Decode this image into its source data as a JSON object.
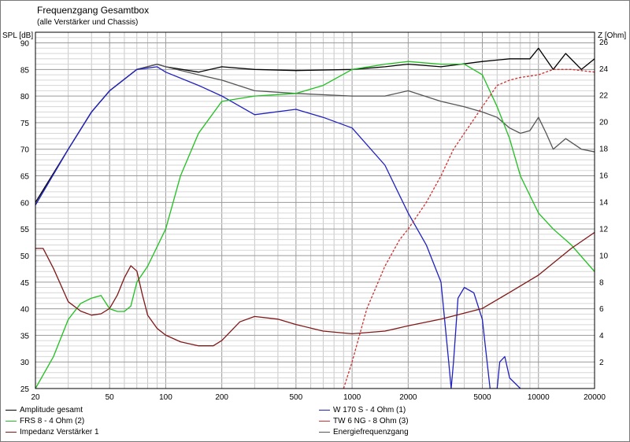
{
  "chart_data": {
    "type": "line",
    "title": "Frequenzgang Gesamtbox",
    "subtitle": "(alle Verstärker und Chassis)",
    "ylabel_left": "SPL [dB]",
    "ylabel_right": "Z [Ohm]",
    "x_scale": "log",
    "xlim": [
      20,
      20000
    ],
    "ylim_left": [
      25,
      92
    ],
    "ylim_right": [
      0,
      26.7
    ],
    "x_ticks": [
      20,
      50,
      100,
      200,
      500,
      1000,
      2000,
      5000,
      10000,
      20000
    ],
    "x_tick_labels": [
      "20",
      "50",
      "100",
      "200",
      "500",
      "1000",
      "2000",
      "5000",
      "10000",
      "20000"
    ],
    "y_ticks_left": [
      25,
      30,
      35,
      40,
      45,
      50,
      55,
      60,
      65,
      70,
      75,
      80,
      85,
      90
    ],
    "y_ticks_right": [
      2,
      4,
      6,
      8,
      10,
      12,
      14,
      16,
      18,
      20,
      22,
      24,
      26
    ],
    "grid": true,
    "series": [
      {
        "name": "Amplitude gesamt",
        "color": "#000000",
        "axis": "left",
        "style": "solid",
        "x": [
          20,
          30,
          40,
          50,
          70,
          90,
          100,
          150,
          200,
          300,
          500,
          1000,
          1500,
          2000,
          3000,
          5000,
          7000,
          9000,
          10000,
          12000,
          14000,
          17000,
          20000
        ],
        "y": [
          60,
          70,
          77,
          81,
          85,
          86,
          85.5,
          84.5,
          85.5,
          85,
          84.8,
          85,
          85.5,
          86,
          85.5,
          86.5,
          87,
          87,
          89,
          85,
          88,
          85,
          87
        ]
      },
      {
        "name": "Energiefrequenzgang",
        "color": "#555555",
        "axis": "left",
        "style": "solid",
        "x": [
          20,
          30,
          40,
          50,
          70,
          90,
          100,
          150,
          200,
          300,
          500,
          1000,
          1500,
          2000,
          3000,
          4000,
          5000,
          6000,
          7000,
          8000,
          9000,
          10000,
          11000,
          12000,
          14000,
          17000,
          20000
        ],
        "y": [
          59.5,
          70,
          77,
          81,
          85,
          86,
          85.5,
          84,
          83,
          81,
          80.5,
          80,
          80,
          81,
          79,
          78,
          77,
          76,
          74,
          73,
          73.5,
          76,
          73,
          70,
          72,
          70,
          69.5
        ]
      },
      {
        "name": "W 170 S - 4 Ohm (1)",
        "color": "#2020c0",
        "axis": "left",
        "style": "solid",
        "x": [
          20,
          30,
          40,
          50,
          70,
          90,
          100,
          150,
          200,
          300,
          500,
          700,
          1000,
          1500,
          2000,
          2500,
          3000,
          3300,
          3400,
          3500,
          3700,
          4000,
          4500,
          5000,
          5500,
          6000,
          6200,
          6600,
          7000,
          8000
        ],
        "y": [
          59.5,
          70,
          77,
          81,
          85,
          85.5,
          84.5,
          82,
          80,
          76.5,
          77.5,
          76,
          74,
          67,
          58,
          52,
          45,
          30,
          25,
          30,
          42,
          44,
          43,
          38,
          25,
          25,
          30,
          31,
          27,
          25
        ]
      },
      {
        "name": "FRS 8 - 4 Ohm (2)",
        "color": "#20c020",
        "axis": "left",
        "style": "solid",
        "x": [
          20,
          25,
          30,
          35,
          40,
          45,
          50,
          55,
          60,
          65,
          70,
          80,
          100,
          120,
          150,
          200,
          300,
          500,
          700,
          1000,
          1500,
          2000,
          3000,
          4000,
          5000,
          6000,
          7000,
          8000,
          10000,
          12000,
          15000,
          20000
        ],
        "y": [
          25,
          31,
          38,
          41,
          42,
          42.5,
          40,
          39.5,
          39.5,
          40.5,
          45,
          48,
          55,
          65,
          73,
          79,
          80,
          80.5,
          82,
          85,
          86,
          86.5,
          86,
          86,
          84,
          78,
          72,
          65,
          58,
          55,
          52,
          47
        ]
      },
      {
        "name": "TW 6 NG - 8 Ohm (3)",
        "color": "#d03030",
        "axis": "left",
        "style": "dashed",
        "x": [
          900,
          1000,
          1200,
          1500,
          1800,
          2000,
          2500,
          3000,
          3500,
          4000,
          5000,
          6000,
          7000,
          8000,
          10000,
          12000,
          15000,
          20000
        ],
        "y": [
          25,
          30,
          40,
          48,
          53,
          55,
          60,
          65,
          70,
          73,
          78,
          82,
          83,
          83.5,
          84,
          85,
          85,
          84.5
        ]
      },
      {
        "name": "Impedanz Verstärker 1",
        "color": "#801818",
        "axis": "right",
        "style": "solid",
        "x": [
          20,
          22,
          25,
          30,
          35,
          40,
          45,
          50,
          55,
          60,
          65,
          70,
          75,
          80,
          90,
          100,
          120,
          150,
          180,
          200,
          250,
          300,
          400,
          500,
          700,
          1000,
          1500,
          2000,
          3000,
          5000,
          7000,
          10000,
          15000,
          20000
        ],
        "y": [
          10.5,
          10.5,
          9,
          6.5,
          5.8,
          5.5,
          5.6,
          6,
          7,
          8.3,
          9.2,
          8.8,
          7,
          5.5,
          4.5,
          4,
          3.5,
          3.2,
          3.2,
          3.6,
          5,
          5.4,
          5.2,
          4.8,
          4.3,
          4.1,
          4.3,
          4.7,
          5.2,
          6,
          7.2,
          8.5,
          10.5,
          11.7
        ]
      }
    ],
    "legend": [
      {
        "label": "Amplitude gesamt",
        "color": "#000000"
      },
      {
        "label": "FRS 8 - 4 Ohm (2)",
        "color": "#20c020"
      },
      {
        "label": "Impedanz Verstärker 1",
        "color": "#801818"
      },
      {
        "label": "W 170 S - 4 Ohm (1)",
        "color": "#2020c0"
      },
      {
        "label": "TW 6 NG - 8 Ohm (3)",
        "color": "#d03030"
      },
      {
        "label": "Energiefrequenzgang",
        "color": "#555555"
      }
    ]
  }
}
